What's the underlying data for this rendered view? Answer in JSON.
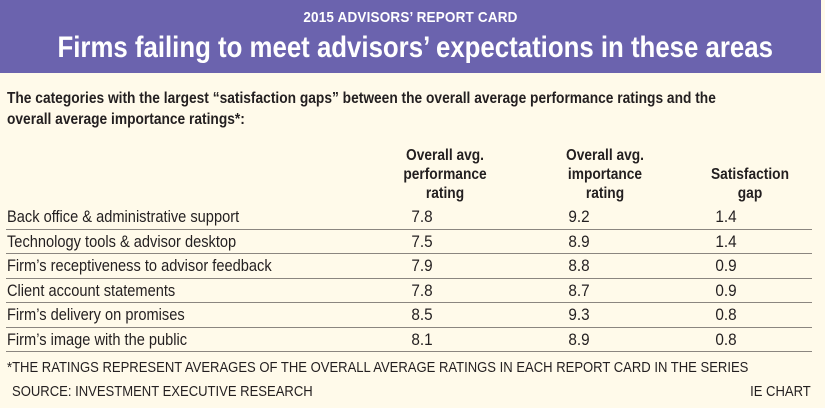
{
  "header": {
    "kicker": "2015 ADVISORS’ REPORT CARD",
    "title": "Firms failing to meet advisors’ expectations in these areas"
  },
  "intro": "The categories with the largest “satisfaction gaps” between the overall average performance ratings and the overall average importance ratings*:",
  "colors": {
    "banner": "#6b63ae",
    "background": "#fffaea",
    "text": "#231f20",
    "divider": "#8b8680"
  },
  "chart_data": {
    "type": "table",
    "title": "Firms failing to meet advisors’ expectations in these areas",
    "subtitle": "2015 ADVISORS’ REPORT CARD",
    "columns": [
      "Overall avg.\nperformance\nrating",
      "Overall avg.\nimportance\nrating",
      "Satisfaction\ngap"
    ],
    "rows": [
      {
        "category": "Back office & administrative support",
        "performance": "7.8",
        "importance": "9.2",
        "gap": "1.4"
      },
      {
        "category": "Technology tools & advisor desktop",
        "performance": "7.5",
        "importance": "8.9",
        "gap": "1.4"
      },
      {
        "category": "Firm’s receptiveness to advisor feedback",
        "performance": "7.9",
        "importance": "8.8",
        "gap": "0.9"
      },
      {
        "category": "Client account statements",
        "performance": "7.8",
        "importance": "8.7",
        "gap": "0.9"
      },
      {
        "category": "Firm’s delivery on promises",
        "performance": "8.5",
        "importance": "9.3",
        "gap": "0.8"
      },
      {
        "category": "Firm’s image with the public",
        "performance": "8.1",
        "importance": "8.9",
        "gap": "0.8"
      }
    ]
  },
  "footnote": "*THE RATINGS REPRESENT AVERAGES OF THE OVERALL AVERAGE RATINGS IN EACH REPORT CARD IN THE SERIES",
  "source": "SOURCE: INVESTMENT EXECUTIVE RESEARCH",
  "credit": "IE CHART"
}
